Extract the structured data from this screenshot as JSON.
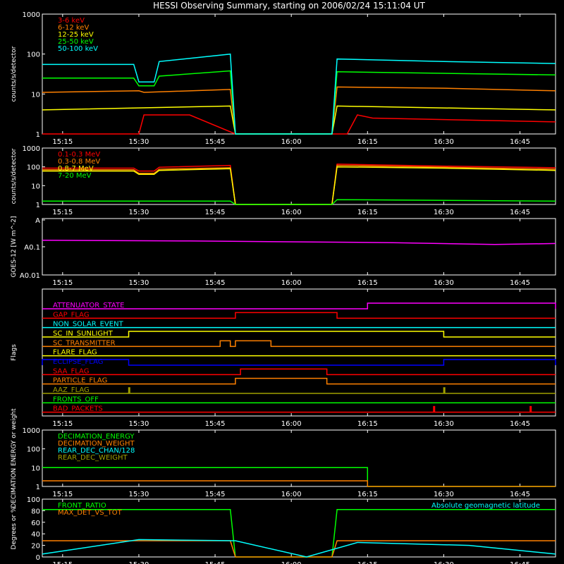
{
  "title": "HESSI Observing Summary, starting on 2006/02/24 15:11:04 UT",
  "time_ticks": [
    "15:15",
    "15:30",
    "15:45",
    "16:00",
    "16:15",
    "16:30",
    "16:45"
  ],
  "colors": {
    "background": "#000000",
    "axis": "#ffffff",
    "red": "#ff0000",
    "orange": "#ff8000",
    "yellow": "#ffff00",
    "green": "#00ff00",
    "cyan": "#00ffff",
    "magenta": "#ff00ff",
    "blue": "#0000ff",
    "olive": "#a0a000"
  },
  "chart_data": [
    {
      "id": "low-energy",
      "type": "line",
      "ylabel": "counts/s/detector",
      "ylog": true,
      "ylim": [
        1,
        1000
      ],
      "yticks": [
        "1",
        "10",
        "100",
        "1000"
      ],
      "x_range": [
        "15:11",
        "16:52"
      ],
      "series": [
        {
          "name": "3-6 keV",
          "color": "#ff0000",
          "points": [
            [
              "15:11",
              1
            ],
            [
              "15:30",
              1
            ],
            [
              "15:31",
              3
            ],
            [
              "15:40",
              3
            ],
            [
              "15:49",
              1
            ],
            [
              "16:11",
              1
            ],
            [
              "16:13",
              3
            ],
            [
              "16:16",
              2.5
            ],
            [
              "16:52",
              2
            ]
          ]
        },
        {
          "name": "6-12 keV",
          "color": "#ff8000",
          "points": [
            [
              "15:11",
              11
            ],
            [
              "15:30",
              12
            ],
            [
              "15:31",
              11
            ],
            [
              "15:48",
              13
            ],
            [
              "15:49",
              1
            ],
            [
              "16:08",
              1
            ],
            [
              "16:09",
              15
            ],
            [
              "16:30",
              14
            ],
            [
              "16:52",
              12
            ]
          ]
        },
        {
          "name": "12-25 keV",
          "color": "#ffff00",
          "points": [
            [
              "15:11",
              4
            ],
            [
              "15:48",
              5
            ],
            [
              "15:49",
              1
            ],
            [
              "16:08",
              1
            ],
            [
              "16:09",
              5
            ],
            [
              "16:52",
              4
            ]
          ]
        },
        {
          "name": "25-50 keV",
          "color": "#00ff00",
          "points": [
            [
              "15:11",
              25
            ],
            [
              "15:29",
              25
            ],
            [
              "15:30",
              16
            ],
            [
              "15:33",
              16
            ],
            [
              "15:34",
              28
            ],
            [
              "15:48",
              38
            ],
            [
              "15:49",
              1
            ],
            [
              "16:08",
              1
            ],
            [
              "16:09",
              36
            ],
            [
              "16:30",
              33
            ],
            [
              "16:52",
              30
            ]
          ]
        },
        {
          "name": "50-100 keV",
          "color": "#00ffff",
          "points": [
            [
              "15:11",
              55
            ],
            [
              "15:29",
              55
            ],
            [
              "15:30",
              20
            ],
            [
              "15:33",
              20
            ],
            [
              "15:34",
              65
            ],
            [
              "15:48",
              100
            ],
            [
              "15:49",
              1
            ],
            [
              "16:08",
              1
            ],
            [
              "16:09",
              75
            ],
            [
              "16:30",
              65
            ],
            [
              "16:52",
              58
            ]
          ]
        }
      ]
    },
    {
      "id": "high-energy",
      "type": "line",
      "ylabel": "counts/s/detector",
      "ylog": true,
      "ylim": [
        1,
        1000
      ],
      "yticks": [
        "1",
        "10",
        "100",
        "1000"
      ],
      "x_range": [
        "15:11",
        "16:52"
      ],
      "series": [
        {
          "name": "0.1-0.3 MeV",
          "color": "#ff0000",
          "points": [
            [
              "15:11",
              85
            ],
            [
              "15:29",
              85
            ],
            [
              "15:30",
              60
            ],
            [
              "15:33",
              60
            ],
            [
              "15:34",
              95
            ],
            [
              "15:48",
              120
            ],
            [
              "15:49",
              1
            ],
            [
              "16:08",
              1
            ],
            [
              "16:09",
              140
            ],
            [
              "16:30",
              110
            ],
            [
              "16:52",
              90
            ]
          ]
        },
        {
          "name": "0.3-0.8 MeV",
          "color": "#ff8000",
          "points": [
            [
              "15:11",
              70
            ],
            [
              "15:29",
              70
            ],
            [
              "15:30",
              45
            ],
            [
              "15:33",
              45
            ],
            [
              "15:34",
              75
            ],
            [
              "15:48",
              90
            ],
            [
              "15:49",
              1
            ],
            [
              "16:08",
              1
            ],
            [
              "16:09",
              120
            ],
            [
              "16:30",
              95
            ],
            [
              "16:52",
              75
            ]
          ]
        },
        {
          "name": "0.8-7 MeV",
          "color": "#ffff00",
          "points": [
            [
              "15:11",
              60
            ],
            [
              "15:29",
              60
            ],
            [
              "15:30",
              40
            ],
            [
              "15:33",
              40
            ],
            [
              "15:34",
              65
            ],
            [
              "15:48",
              80
            ],
            [
              "15:49",
              1
            ],
            [
              "16:08",
              1
            ],
            [
              "16:09",
              100
            ],
            [
              "16:30",
              85
            ],
            [
              "16:52",
              65
            ]
          ]
        },
        {
          "name": "7-20 MeV",
          "color": "#00ff00",
          "points": [
            [
              "15:11",
              1.5
            ],
            [
              "15:48",
              1.5
            ],
            [
              "15:49",
              1
            ],
            [
              "16:08",
              1
            ],
            [
              "16:09",
              1.8
            ],
            [
              "16:52",
              1.5
            ]
          ]
        }
      ]
    },
    {
      "id": "goes",
      "type": "line",
      "ylabel": "GOES-12 [W m^-2]",
      "ylog": true,
      "yticks": [
        "A",
        "A0.1",
        "A0.01"
      ],
      "x_range": [
        "15:11",
        "16:52"
      ],
      "series": [
        {
          "name": "",
          "color": "#ff00ff",
          "points": [
            [
              "15:11",
              0.17
            ],
            [
              "15:40",
              0.16
            ],
            [
              "16:00",
              0.15
            ],
            [
              "16:20",
              0.14
            ],
            [
              "16:40",
              0.12
            ],
            [
              "16:52",
              0.13
            ]
          ]
        }
      ]
    },
    {
      "id": "flags",
      "type": "line",
      "ylabel": "Flags",
      "x_range": [
        "15:11",
        "16:52"
      ],
      "flags": [
        {
          "name": "ATTENUATOR_STATE",
          "color": "#ff00ff",
          "on": [
            [
              "16:15",
              "16:52"
            ]
          ]
        },
        {
          "name": "GAP_FLAG",
          "color": "#ff0000",
          "on": [
            [
              "15:49",
              "16:09"
            ]
          ]
        },
        {
          "name": "NON_SOLAR_EVENT",
          "color": "#00ffff",
          "on": []
        },
        {
          "name": "SC_IN_SUNLIGHT",
          "color": "#ffff00",
          "on": [
            [
              "15:28",
              "16:30"
            ]
          ]
        },
        {
          "name": "SC_TRANSMITTER",
          "color": "#ff8000",
          "on": [
            [
              "15:46",
              "15:48"
            ],
            [
              "15:49",
              "15:56"
            ]
          ]
        },
        {
          "name": "FLARE_FLAG",
          "color": "#ffff00",
          "on": []
        },
        {
          "name": "ECLIPSE_FLAG",
          "color": "#0000ff",
          "on": [
            [
              "15:11",
              "15:28"
            ],
            [
              "16:30",
              "16:52"
            ]
          ]
        },
        {
          "name": "SAA_FLAG",
          "color": "#ff0000",
          "on": [
            [
              "15:50",
              "16:07"
            ]
          ]
        },
        {
          "name": "PARTICLE_FLAG",
          "color": "#ff8000",
          "on": [
            [
              "15:49",
              "16:07"
            ]
          ]
        },
        {
          "name": "AAZ_FLAG",
          "color": "#a0a000",
          "on": [
            [
              "15:28",
              "15:28"
            ],
            [
              "16:30",
              "16:30"
            ]
          ]
        },
        {
          "name": "FRONTS_OFF",
          "color": "#00ff00",
          "on": []
        },
        {
          "name": "BAD_PACKETS",
          "color": "#ff0000",
          "on": [
            [
              "16:28",
              "16:28"
            ],
            [
              "16:47",
              "16:47"
            ]
          ]
        }
      ]
    },
    {
      "id": "decimation",
      "type": "line",
      "ylabel": "DECIMATION ENERGY or weight",
      "ylog": true,
      "ylim": [
        1,
        1000
      ],
      "yticks": [
        "1",
        "10",
        "100",
        "1000"
      ],
      "x_range": [
        "15:11",
        "16:52"
      ],
      "series": [
        {
          "name": "DECIMATION_ENERGY",
          "color": "#00ff00",
          "points": [
            [
              "15:11",
              10
            ],
            [
              "16:15",
              10
            ],
            [
              "16:15",
              1
            ],
            [
              "16:52",
              1
            ]
          ]
        },
        {
          "name": "DECIMATION_WEIGHT",
          "color": "#ff8000",
          "points": [
            [
              "15:11",
              2
            ],
            [
              "16:15",
              2
            ],
            [
              "16:15",
              1
            ],
            [
              "16:52",
              1
            ]
          ]
        },
        {
          "name": "REAR_DEC_CHAN/128",
          "color": "#00ffff",
          "points": []
        },
        {
          "name": "REAR_DEC_WEIGHT",
          "color": "#a0a000",
          "points": []
        }
      ]
    },
    {
      "id": "front-ratio",
      "type": "line",
      "ylabel": "Degrees or %",
      "ylim": [
        0,
        100
      ],
      "yticks": [
        "0",
        "20",
        "40",
        "60",
        "80",
        "100"
      ],
      "x_range": [
        "15:11",
        "16:52"
      ],
      "series": [
        {
          "name": "FRONT_RATIO",
          "color": "#00ff00",
          "points": [
            [
              "15:11",
              82
            ],
            [
              "15:48",
              82
            ],
            [
              "15:49",
              0
            ],
            [
              "16:08",
              0
            ],
            [
              "16:09",
              82
            ],
            [
              "16:52",
              82
            ]
          ]
        },
        {
          "name": "MAX_DET_VS_TOT",
          "color": "#ff8000",
          "points": [
            [
              "15:11",
              28
            ],
            [
              "15:48",
              28
            ],
            [
              "15:49",
              0
            ],
            [
              "16:08",
              0
            ],
            [
              "16:09",
              28
            ],
            [
              "16:52",
              28
            ]
          ]
        },
        {
          "name": "Absolute geomagnetic latitude",
          "color": "#00ffff",
          "points": [
            [
              "15:11",
              5
            ],
            [
              "15:30",
              30
            ],
            [
              "15:49",
              28
            ],
            [
              "16:03",
              0
            ],
            [
              "16:13",
              25
            ],
            [
              "16:35",
              20
            ],
            [
              "16:52",
              5
            ]
          ]
        }
      ]
    }
  ]
}
